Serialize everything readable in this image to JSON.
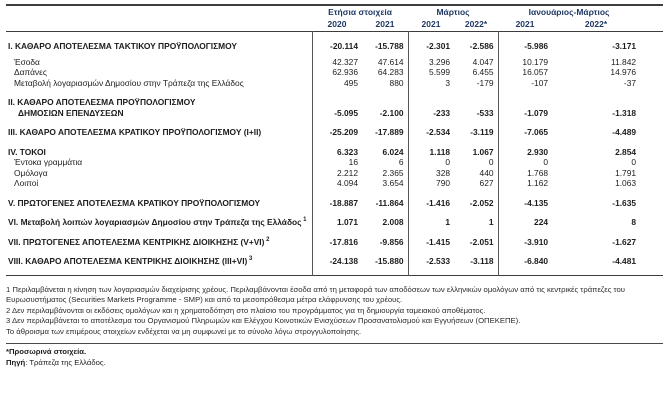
{
  "colors": {
    "header_text": "#1f3864",
    "body_text": "#1c1c1c",
    "rule": "#3d3d3d",
    "background": "#ffffff"
  },
  "table": {
    "col_groups": [
      {
        "label": "Ετήσια στοιχεία",
        "years": [
          "2020",
          "2021"
        ]
      },
      {
        "label": "Μάρτιος",
        "years": [
          "2021",
          "2022*"
        ]
      },
      {
        "label": "Ιανουάριος-Μάρτιος",
        "years": [
          "2021",
          "2022*"
        ]
      }
    ],
    "rows": [
      {
        "style": "section",
        "label": "I. ΚΑΘΑΡΟ ΑΠΟΤΕΛΕΣΜΑ ΤΑΚΤΙΚΟΥ ΠΡΟΫΠΟΛΟΓΙΣΜΟΥ",
        "values": [
          "-20.114",
          "-15.788",
          "-2.301",
          "-2.586",
          "-5.986",
          "-3.171"
        ]
      },
      {
        "style": "detail-gap",
        "label": "Έσοδα",
        "values": [
          "42.327",
          "47.614",
          "3.296",
          "4.047",
          "10.179",
          "11.842"
        ]
      },
      {
        "style": "detail",
        "label": "Δαπάνες",
        "values": [
          "62.936",
          "64.283",
          "5.599",
          "6.455",
          "16.057",
          "14.976"
        ]
      },
      {
        "style": "detail",
        "label": "Μεταβολή λογαριασμών Δημοσίου στην Τράπεζα της Ελλάδος",
        "values": [
          "495",
          "880",
          "3",
          "-179",
          "-107",
          "-37"
        ]
      },
      {
        "style": "section",
        "label": "II. ΚΑΘΑΡΟ ΑΠΟΤΕΛΕΣΜΑ ΠΡΟΫΠΟΛΟΓΙΣΜΟΥ",
        "label2": "ΔΗΜΟΣΙΩΝ ΕΠΕΝΔΥΣΕΩΝ",
        "values": [
          "-5.095",
          "-2.100",
          "-233",
          "-533",
          "-1.079",
          "-1.318"
        ]
      },
      {
        "style": "section",
        "label": "III. ΚΑΘΑΡΟ ΑΠΟΤΕΛΕΣΜΑ ΚΡΑΤΙΚΟΥ ΠΡΟΫΠΟΛΟΓΙΣΜΟΥ (I+II)",
        "values": [
          "-25.209",
          "-17.889",
          "-2.534",
          "-3.119",
          "-7.065",
          "-4.489"
        ]
      },
      {
        "style": "section",
        "label": "IV. ΤΟΚΟΙ",
        "values": [
          "6.323",
          "6.024",
          "1.118",
          "1.067",
          "2.930",
          "2.854"
        ]
      },
      {
        "style": "detail",
        "label": "Έντοκα γραμμάτια",
        "values": [
          "16",
          "6",
          "0",
          "0",
          "0",
          "0"
        ]
      },
      {
        "style": "detail",
        "label": "Ομόλογα",
        "values": [
          "2.212",
          "2.365",
          "328",
          "440",
          "1.768",
          "1.791"
        ]
      },
      {
        "style": "detail",
        "label": "Λοιποί",
        "values": [
          "4.094",
          "3.654",
          "790",
          "627",
          "1.162",
          "1.063"
        ]
      },
      {
        "style": "section",
        "label": "V. ΠΡΩΤΟΓΕΝΕΣ ΑΠΟΤΕΛΕΣΜΑ ΚΡΑΤΙΚΟΥ ΠΡΟΫΠΟΛΟΓΙΣΜΟΥ",
        "values": [
          "-18.887",
          "-11.864",
          "-1.416",
          "-2.052",
          "-4.135",
          "-1.635"
        ]
      },
      {
        "style": "section",
        "label": "VI. Μεταβολή λοιπών λογαριασμών Δημοσίου στην Τράπεζα της Ελλάδος",
        "sup": "1",
        "values": [
          "1.071",
          "2.008",
          "1",
          "1",
          "224",
          "8"
        ]
      },
      {
        "style": "section",
        "label": "VII. ΠΡΩΤΟΓΕΝΕΣ ΑΠΟΤΕΛΕΣΜΑ ΚΕΝΤΡΙΚΗΣ ΔΙΟΙΚΗΣΗΣ (V+VI)",
        "sup": "2",
        "values": [
          "-17.816",
          "-9.856",
          "-1.415",
          "-2.051",
          "-3.910",
          "-1.627"
        ]
      },
      {
        "style": "section",
        "label": "VIII. ΚΑΘΑΡΟ ΑΠΟΤΕΛΕΣΜΑ ΚΕΝΤΡΙΚΗΣ ΔΙΟΙΚΗΣΗΣ (III+VI)",
        "sup": "3",
        "values": [
          "-24.138",
          "-15.880",
          "-2.533",
          "-3.118",
          "-6.840",
          "-4.481"
        ]
      }
    ]
  },
  "footnotes": [
    "1 Περιλαμβάνεται η κίνηση των λογαριασμών διαχείρισης χρέους. Περιλαμβάνονται έσοδα από τη μεταφορά των αποδόσεων των ελληνικών ομολόγων από τις κεντρικές τράπεζες του Ευρωσυστήματος (Securities Markets Programme - SMP) και από τα μεσοπρόθεσμα μέτρα ελάφρυνσης του χρέους.",
    "2 Δεν περιλαμβάνονται οι εκδόσεις ομολόγων και η χρηματοδότηση στο πλαίσιο του προγράμματος για τη δημιουργία ταμειακού αποθέματος.",
    "3 Δεν περιλαμβάνεται το αποτέλεσμα του Οργανισμού Πληρωμών και Ελέγχου Κοινοτικών Ενισχύσεων Προσανατολισμού και Εγγυήσεων (ΟΠΕΚΕΠΕ)."
  ],
  "rounding_note": "Το άθροισμα των επιμέρους στοιχείων ενδέχεται να μη συμφωνεί με το σύνολο λόγω στρογγυλοποίησης.",
  "footer": {
    "provisional": "*Προσωρινά στοιχεία.",
    "source_label": "Πηγή",
    "source_rest": ": Τράπεζα της Ελλάδος."
  }
}
